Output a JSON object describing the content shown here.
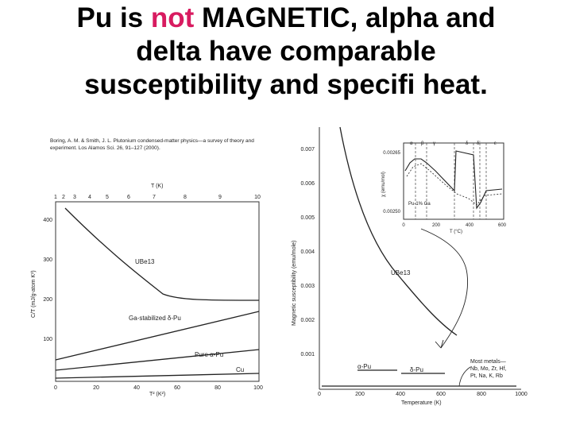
{
  "slide": {
    "title_prefix": "Pu is ",
    "title_highlight": "not",
    "title_line1_suffix": " MAGNETIC, alpha and",
    "title_line2": "delta have comparable",
    "title_line3": "susceptibility and specifi heat.",
    "highlight_color": "#d81b60"
  },
  "left_panel": {
    "citation_line1": "Boring, A. M. & Smith, J. L. Plutonium condensed-matter physics—a survey of theory and",
    "citation_line2": "experiment. Los Alamos Sci. 26, 91–127 (2000).",
    "top_axis_label": "T (K)",
    "top_ticks": [
      "1",
      "2",
      "3",
      "4",
      "5",
      "6",
      "7",
      "8",
      "9",
      "10"
    ],
    "bottom_axis_label": "T² (K²)",
    "bottom_ticks": [
      "0",
      "20",
      "40",
      "60",
      "80",
      "100"
    ],
    "y_axis_label": "C/T (mJ/g-atom K²)",
    "y_ticks": [
      "400",
      "300",
      "200",
      "100"
    ],
    "curve_labels": {
      "ube13": "UBe13",
      "ga_delta": "Ga-stabilized δ-Pu",
      "alpha": "Pure α-Pu",
      "cu": "Cu"
    }
  },
  "right_panel": {
    "x_axis_label": "Temperature (K)",
    "x_ticks": [
      "0",
      "200",
      "400",
      "600",
      "800",
      "1000"
    ],
    "y_axis_label": "Magnetic susceptibility (emu/mole)",
    "y_ticks": [
      "0.007",
      "0.006",
      "0.005",
      "0.004",
      "0.003",
      "0.002",
      "0.001"
    ],
    "curve_labels": {
      "ube13": "UBe13",
      "alpha": "α-Pu",
      "delta": "δ-Pu"
    },
    "most_metals_label_1": "Most metals—",
    "most_metals_label_2": "Nb, Mo, Zr, Hf,",
    "most_metals_label_3": "Pt, Na, K, Rb"
  },
  "inset": {
    "phases": [
      "α",
      "β",
      "γ",
      "δ",
      "δ'",
      "ε"
    ],
    "y_tick_top": "0.00265",
    "y_tick_bottom": "0.00250",
    "y_axis_label": "χ (emu/mol)",
    "x_ticks": [
      "0",
      "200",
      "400",
      "600"
    ],
    "x_axis_label": "T (°C)",
    "annotation": "Pu-1% Ga"
  }
}
